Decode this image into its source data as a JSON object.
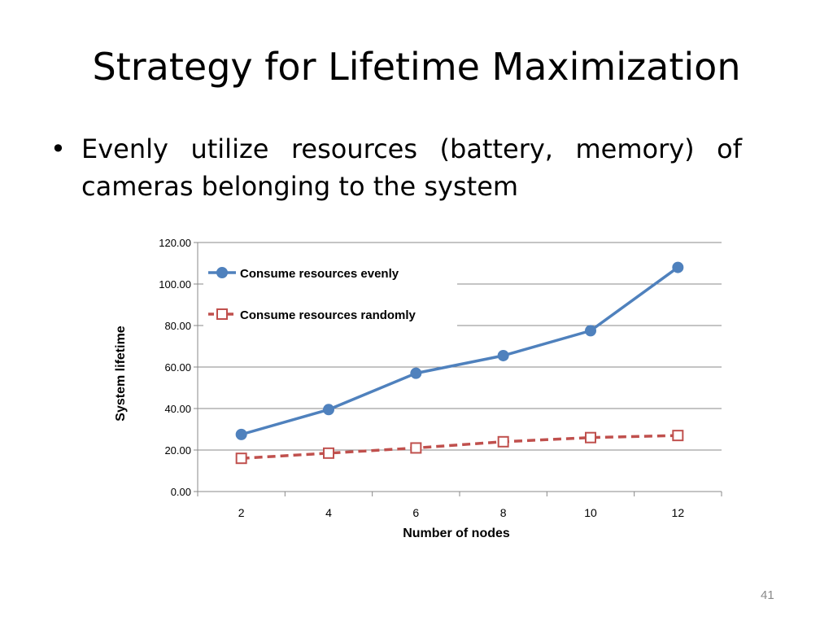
{
  "slide": {
    "title": "Strategy for Lifetime Maximization",
    "bullet": "Evenly utilize resources (battery, memory) of cameras belonging to the system",
    "bullet_mark": "•",
    "page_number": "41"
  },
  "chart_data": {
    "type": "line",
    "title": "",
    "xlabel": "Number of nodes",
    "ylabel": "System lifetime",
    "categories": [
      "2",
      "4",
      "6",
      "8",
      "10",
      "12"
    ],
    "ylim": [
      0,
      120
    ],
    "yticks": [
      "0.00",
      "20.00",
      "40.00",
      "60.00",
      "80.00",
      "100.00",
      "120.00"
    ],
    "grid": true,
    "legend_position": "top-left",
    "series": [
      {
        "name": "Consume resources evenly",
        "values": [
          27.5,
          39.5,
          57,
          65.5,
          77.5,
          108
        ],
        "color": "#4f81bd",
        "style": "solid",
        "marker": "circle"
      },
      {
        "name": "Consume resources randomly",
        "values": [
          16,
          18.5,
          21,
          24,
          26,
          27
        ],
        "color": "#c0504d",
        "style": "dashed",
        "marker": "square-open"
      }
    ]
  }
}
